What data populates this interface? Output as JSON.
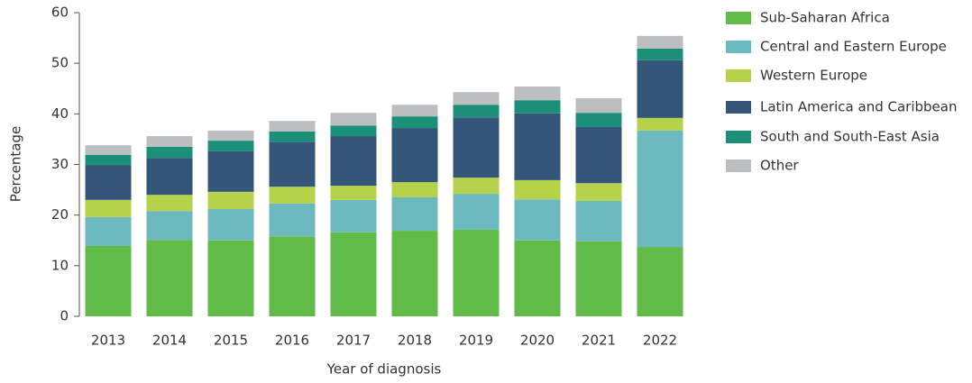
{
  "chart_data": {
    "type": "stacked_bar",
    "x_label": "Year of diagnosis",
    "y_label": "Percentage",
    "categories": [
      "2013",
      "2014",
      "2015",
      "2016",
      "2017",
      "2018",
      "2019",
      "2020",
      "2021",
      "2022"
    ],
    "ylim": [
      0,
      60
    ],
    "yticks": [
      0,
      10,
      20,
      30,
      40,
      50,
      60
    ],
    "legend_position": "right",
    "series": [
      {
        "name": "Sub-Saharan Africa",
        "color": "#62bb46",
        "values": [
          13.9,
          15.1,
          15.0,
          15.8,
          16.6,
          16.9,
          17.1,
          15.0,
          14.8,
          13.7
        ]
      },
      {
        "name": "Central and Eastern Europe",
        "color": "#6cbabf",
        "values": [
          5.7,
          5.7,
          6.2,
          6.5,
          6.4,
          6.6,
          7.1,
          8.1,
          8.0,
          23.0
        ]
      },
      {
        "name": "Western Europe",
        "color": "#b5d24a",
        "values": [
          3.4,
          3.2,
          3.4,
          3.3,
          2.8,
          3.0,
          3.2,
          3.8,
          3.5,
          2.5
        ]
      },
      {
        "name": "Latin America and Caribbean",
        "color": "#34567a",
        "values": [
          6.9,
          7.3,
          8.0,
          8.9,
          9.8,
          10.7,
          11.9,
          13.2,
          11.1,
          11.4
        ]
      },
      {
        "name": "South and South-East Asia",
        "color": "#1b8f78",
        "values": [
          2.0,
          2.2,
          2.1,
          2.0,
          2.1,
          2.3,
          2.5,
          2.6,
          2.8,
          2.3
        ]
      },
      {
        "name": "Other",
        "color": "#bcbec0",
        "values": [
          1.9,
          2.1,
          2.0,
          2.1,
          2.5,
          2.3,
          2.5,
          2.7,
          2.9,
          2.5
        ]
      }
    ]
  }
}
